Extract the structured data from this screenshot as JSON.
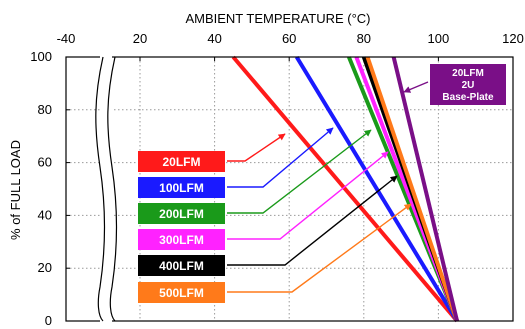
{
  "chart_data": {
    "type": "line",
    "title": "",
    "xlabel": "AMBIENT TEMPERATURE (°C)",
    "ylabel": "% of FULL LOAD",
    "x_ticks": [
      -40,
      20,
      40,
      60,
      80,
      100,
      120
    ],
    "y_ticks": [
      0,
      20,
      40,
      60,
      80,
      100
    ],
    "xlim": [
      -40,
      120
    ],
    "ylim": [
      0,
      100
    ],
    "axis_break": "between -40 and 20",
    "grid": true,
    "series": [
      {
        "name": "20LFM",
        "color": "#ff1a1a",
        "x": [
          45,
          105
        ],
        "y": [
          100,
          0
        ]
      },
      {
        "name": "100LFM",
        "color": "#1a1aff",
        "x": [
          62,
          105
        ],
        "y": [
          100,
          0
        ]
      },
      {
        "name": "200LFM",
        "color": "#1a9a1a",
        "x": [
          76,
          105
        ],
        "y": [
          100,
          0
        ]
      },
      {
        "name": "300LFM",
        "color": "#ff22ff",
        "x": [
          78,
          105
        ],
        "y": [
          100,
          0
        ]
      },
      {
        "name": "400LFM",
        "color": "#000000",
        "x": [
          80,
          105
        ],
        "y": [
          100,
          0
        ]
      },
      {
        "name": "500LFM",
        "color": "#ff7a1a",
        "x": [
          81,
          105
        ],
        "y": [
          100,
          0
        ]
      },
      {
        "name": "20LFM 2U Base-Plate",
        "color": "#7a0f87",
        "x": [
          88,
          105
        ],
        "y": [
          100,
          0
        ]
      }
    ],
    "badges": [
      {
        "label": "20LFM",
        "color": "#ff1a1a"
      },
      {
        "label": "100LFM",
        "color": "#1a1aff"
      },
      {
        "label": "200LFM",
        "color": "#1a9a1a"
      },
      {
        "label": "300LFM",
        "color": "#ff22ff"
      },
      {
        "label": "400LFM",
        "color": "#000000"
      },
      {
        "label": "500LFM",
        "color": "#ff7a1a"
      }
    ],
    "baseplate_box": {
      "lines": [
        "20LFM",
        "2U",
        "Base-Plate"
      ],
      "color": "#7a0f87"
    }
  }
}
